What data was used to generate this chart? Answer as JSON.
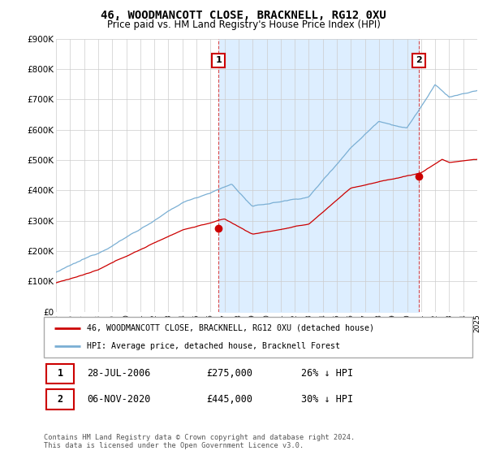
{
  "title": "46, WOODMANCOTT CLOSE, BRACKNELL, RG12 0XU",
  "subtitle": "Price paid vs. HM Land Registry's House Price Index (HPI)",
  "legend_line1": "46, WOODMANCOTT CLOSE, BRACKNELL, RG12 0XU (detached house)",
  "legend_line2": "HPI: Average price, detached house, Bracknell Forest",
  "footnote": "Contains HM Land Registry data © Crown copyright and database right 2024.\nThis data is licensed under the Open Government Licence v3.0.",
  "table_row1": {
    "num": "1",
    "date": "28-JUL-2006",
    "price": "£275,000",
    "hpi": "26% ↓ HPI"
  },
  "table_row2": {
    "num": "2",
    "date": "06-NOV-2020",
    "price": "£445,000",
    "hpi": "30% ↓ HPI"
  },
  "red_line_color": "#cc0000",
  "blue_line_color": "#7aafd4",
  "shade_color": "#ddeeff",
  "ylim": [
    0,
    900000
  ],
  "xlim_start": 1995,
  "xlim_end": 2025,
  "yticks": [
    0,
    100000,
    200000,
    300000,
    400000,
    500000,
    600000,
    700000,
    800000,
    900000
  ],
  "ytick_labels": [
    "£0",
    "£100K",
    "£200K",
    "£300K",
    "£400K",
    "£500K",
    "£600K",
    "£700K",
    "£800K",
    "£900K"
  ],
  "xticks": [
    1995,
    1996,
    1997,
    1998,
    1999,
    2000,
    2001,
    2002,
    2003,
    2004,
    2005,
    2006,
    2007,
    2008,
    2009,
    2010,
    2011,
    2012,
    2013,
    2014,
    2015,
    2016,
    2017,
    2018,
    2019,
    2020,
    2021,
    2022,
    2023,
    2024,
    2025
  ],
  "sale1_x": 2006.57,
  "sale1_y": 275000,
  "sale2_x": 2020.85,
  "sale2_y": 445000
}
